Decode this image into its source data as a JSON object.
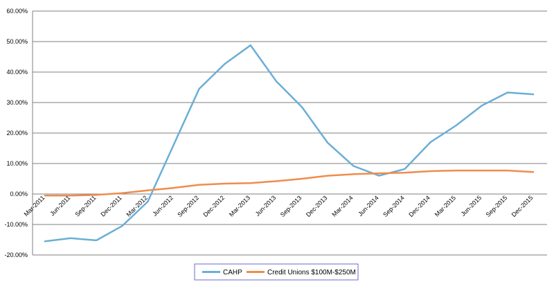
{
  "chart_data": {
    "type": "line",
    "title": "",
    "xlabel": "",
    "ylabel": "",
    "ylim": [
      -20,
      60
    ],
    "y_ticks": [
      "60.00%",
      "50.00%",
      "40.00%",
      "30.00%",
      "20.00%",
      "10.00%",
      "0.00%",
      "-10.00%",
      "-20.00%"
    ],
    "y_tick_values": [
      60,
      50,
      40,
      30,
      20,
      10,
      0,
      -10,
      -20
    ],
    "categories": [
      "Mar-2011",
      "Jun-2011",
      "Sep-2011",
      "Dec-2011",
      "Mar-2012",
      "Jun-2012",
      "Sep-2012",
      "Dec-2012",
      "Mar-2013",
      "Jun-2013",
      "Sep-2013",
      "Dec-2013",
      "Mar-2014",
      "Jun-2014",
      "Sep-2014",
      "Dec-2014",
      "Mar-2015",
      "Jun-2015",
      "Sep-2015",
      "Dec-2015"
    ],
    "grid": true,
    "legend_position": "bottom",
    "series": [
      {
        "name": "CAHP",
        "color": "#6aaed6",
        "values": [
          -15.5,
          -14.5,
          -15.2,
          -10.5,
          -2.5,
          16.0,
          34.5,
          42.7,
          48.8,
          37.0,
          28.5,
          16.8,
          9.2,
          6.0,
          8.2,
          17.0,
          22.5,
          29.0,
          33.3,
          32.7
        ]
      },
      {
        "name": "Credit Unions $100M-$250M",
        "color": "#f08c4a",
        "values": [
          -0.5,
          -0.5,
          -0.3,
          0.3,
          1.2,
          2.0,
          3.0,
          3.4,
          3.6,
          4.2,
          5.0,
          6.0,
          6.5,
          6.8,
          7.0,
          7.5,
          7.7,
          7.7,
          7.7,
          7.2
        ]
      }
    ]
  }
}
